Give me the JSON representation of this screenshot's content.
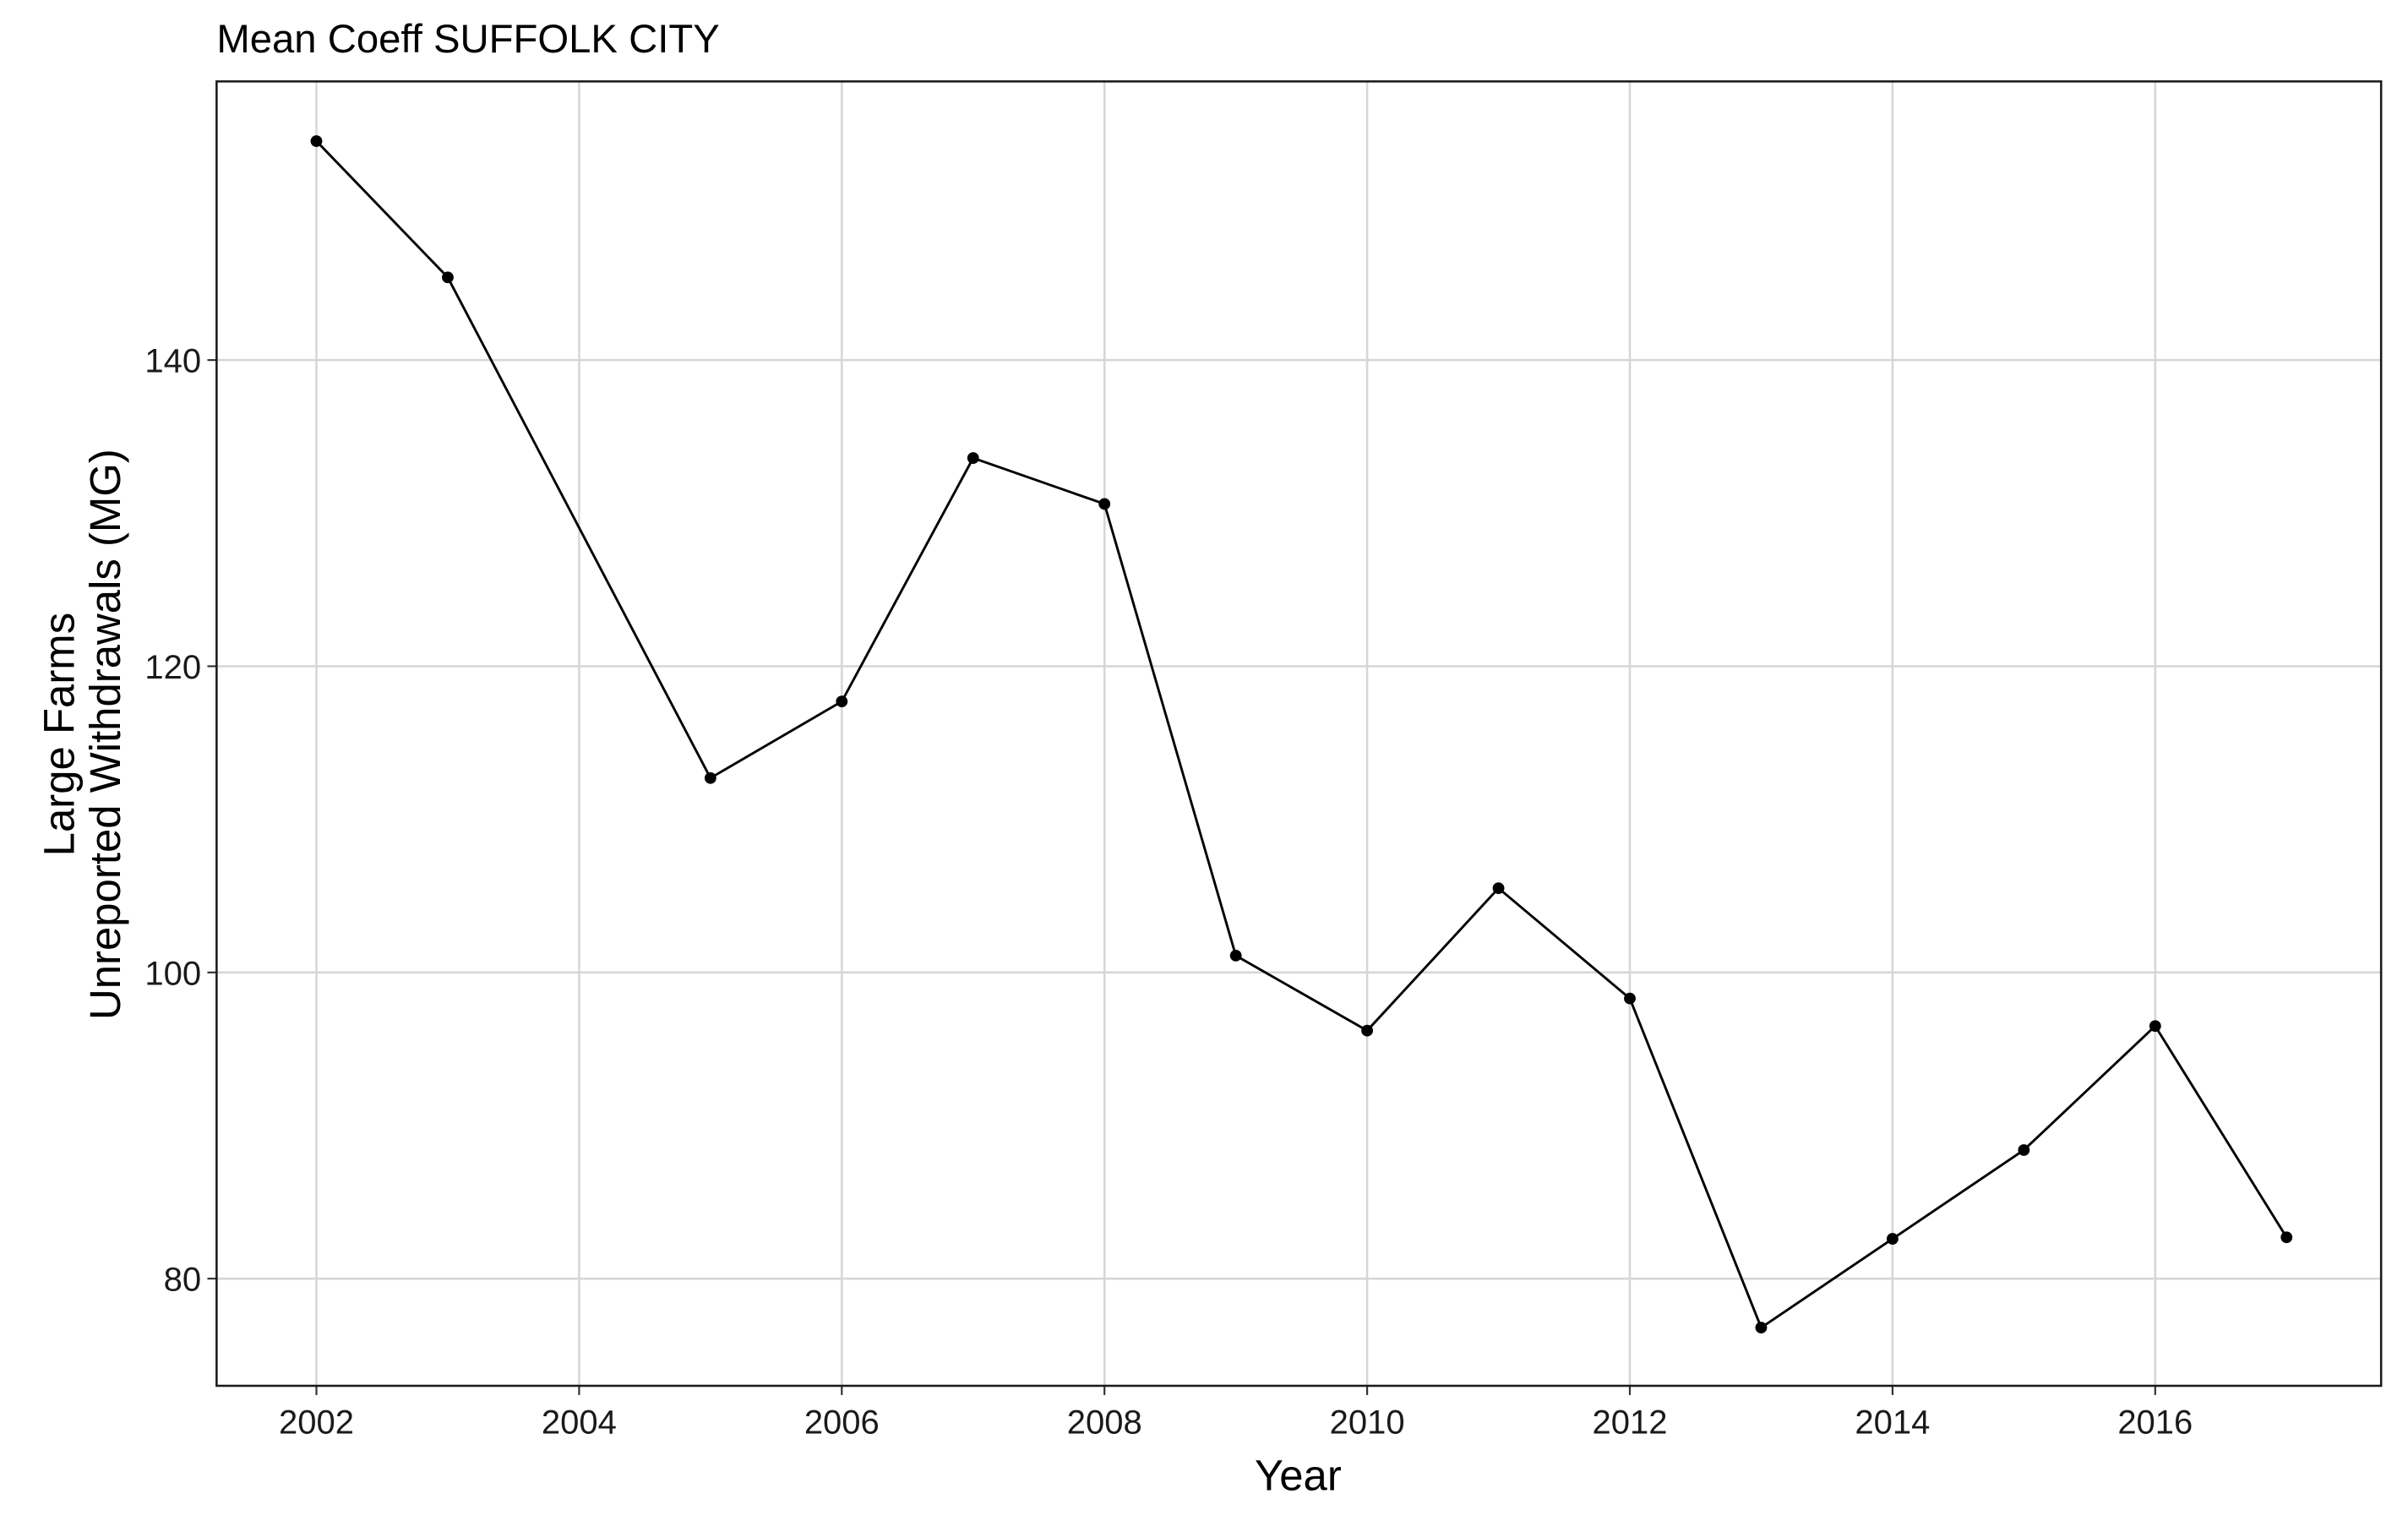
{
  "chart_data": {
    "type": "line",
    "title": "Mean Coeff SUFFOLK CITY",
    "x_label": "Year",
    "y_label": [
      "Large Farms",
      "Unreported Withdrawals (MG)"
    ],
    "x": [
      2002,
      2003,
      2005,
      2006,
      2007,
      2008,
      2009,
      2010,
      2011,
      2012,
      2013,
      2014,
      2015,
      2016,
      2017
    ],
    "values": [
      154.3,
      145.4,
      112.7,
      117.7,
      133.6,
      130.6,
      101.1,
      96.2,
      105.5,
      98.3,
      76.8,
      82.6,
      88.4,
      96.5,
      82.7
    ],
    "color": "#000000",
    "xlim": [
      2001.24,
      2017.72
    ],
    "xticks": [
      2002,
      2004,
      2006,
      2008,
      2010,
      2012,
      2014,
      2016
    ],
    "ylim": [
      73.0,
      158.2
    ],
    "yticks": [
      80,
      100,
      120,
      140
    ],
    "grid": true
  }
}
